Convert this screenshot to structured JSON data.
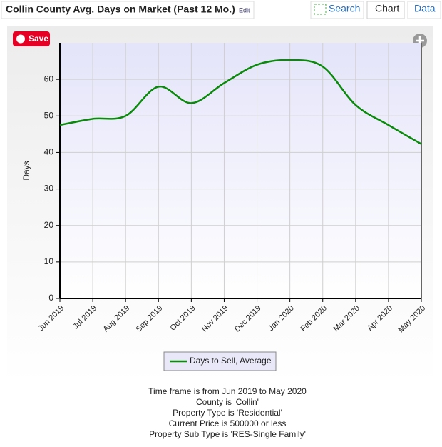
{
  "header": {
    "title": "Collin County Avg. Days on Market (Past 12 Mo.)",
    "edit": "Edit"
  },
  "tabs": [
    "Search",
    "Chart",
    "Data"
  ],
  "save_button": "Save",
  "chart_data": {
    "type": "line",
    "y_label": "Days",
    "categories": [
      "Jun 2019",
      "Jul 2019",
      "Aug 2019",
      "Sep 2019",
      "Oct 2019",
      "Nov 2019",
      "Dec 2019",
      "Jan 2020",
      "Feb 2020",
      "Mar 2020",
      "Apr 2020",
      "May 2020"
    ],
    "series": [
      {
        "name": "Days to Sell, Average",
        "color": "#0a8a0a",
        "values": [
          47.5,
          49.2,
          50,
          58,
          53.5,
          59,
          64,
          65.3,
          63.5,
          53,
          47.5,
          42.3
        ]
      }
    ],
    "ylim": [
      0,
      70
    ],
    "yticks": [
      0,
      10,
      20,
      30,
      40,
      50,
      60
    ],
    "grid": true
  },
  "notes": [
    "Time frame is from Jun 2019 to May 2020",
    "County is 'Collin'",
    "Property Type is 'Residential'",
    "Current Price is 500000 or less",
    "Property Sub Type is 'RES-Single Family'"
  ]
}
